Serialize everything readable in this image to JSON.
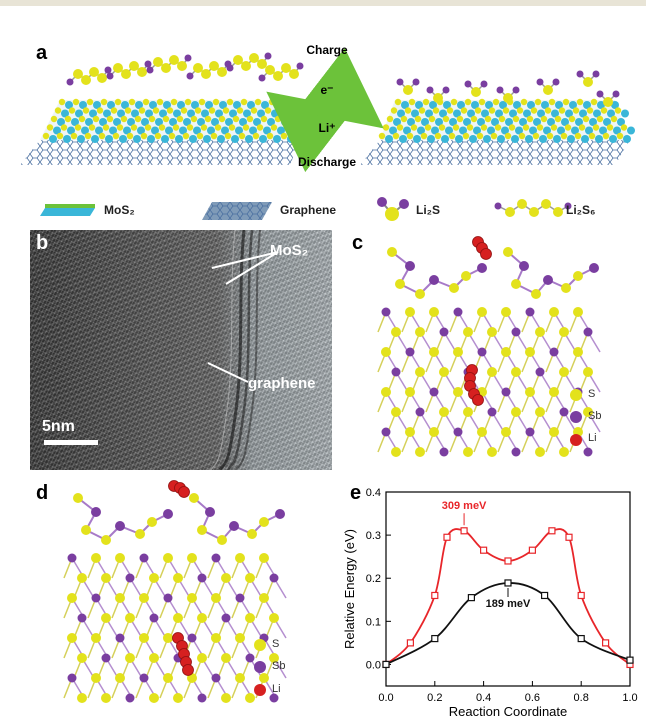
{
  "panel_a": {
    "letter": "a",
    "cycle_top": "Charge",
    "cycle_bottom": "Discharge",
    "electron": "e⁻",
    "lithium_ion": "Li⁺",
    "legend": {
      "mos2": "MoS₂",
      "graphene": "Graphene",
      "li2s": "Li₂S",
      "li2s6": "Li₂S₆"
    }
  },
  "panel_b": {
    "letter": "b",
    "label_mos2": "MoS₂",
    "label_graphene": "graphene",
    "scale_bar": "5nm"
  },
  "panel_c": {
    "letter": "c",
    "legend": {
      "s": "S",
      "sb": "Sb",
      "li": "Li"
    }
  },
  "panel_d": {
    "letter": "d",
    "legend": {
      "s": "S",
      "sb": "Sb",
      "li": "Li"
    }
  },
  "panel_e": {
    "letter": "e"
  },
  "colors": {
    "sulfur": "#e3e21c",
    "antimony": "#7a3ea0",
    "lithium": "#d62020",
    "mo": "#3ab6d8",
    "graphene": "#4a6fa0",
    "arrow_green": "#6cc23a",
    "red_series": "#e8262a",
    "black_series": "#111111"
  },
  "chart_data": {
    "type": "line",
    "xlabel": "Reaction Coordinate",
    "ylabel": "Relative Energy (eV)",
    "xlim": [
      0.0,
      1.0
    ],
    "ylim": [
      -0.05,
      0.4
    ],
    "xticks": [
      "0.0",
      "0.2",
      "0.4",
      "0.6",
      "0.8",
      "1.0"
    ],
    "yticks": [
      "0.0",
      "0.1",
      "0.2",
      "0.3",
      "0.4"
    ],
    "xtick_values": [
      0.0,
      0.2,
      0.4,
      0.6,
      0.8,
      1.0
    ],
    "ytick_values": [
      0.0,
      0.1,
      0.2,
      0.3,
      0.4
    ],
    "series": [
      {
        "color": "#e8262a",
        "marker": "square-open",
        "x": [
          0.0,
          0.1,
          0.2,
          0.25,
          0.32,
          0.4,
          0.5,
          0.6,
          0.68,
          0.75,
          0.8,
          0.9,
          1.0
        ],
        "y": [
          0.0,
          0.05,
          0.16,
          0.295,
          0.31,
          0.265,
          0.24,
          0.265,
          0.31,
          0.295,
          0.16,
          0.05,
          0.0
        ]
      },
      {
        "color": "#111111",
        "marker": "square-open",
        "x": [
          0.0,
          0.2,
          0.35,
          0.5,
          0.65,
          0.8,
          1.0
        ],
        "y": [
          0.0,
          0.06,
          0.155,
          0.189,
          0.16,
          0.06,
          0.01
        ]
      }
    ],
    "annotations": [
      {
        "text": "309 meV",
        "x": 0.32,
        "y": 0.309,
        "color": "#e8262a"
      },
      {
        "text": "189 meV",
        "x": 0.5,
        "y": 0.189,
        "color": "#111111"
      }
    ]
  }
}
